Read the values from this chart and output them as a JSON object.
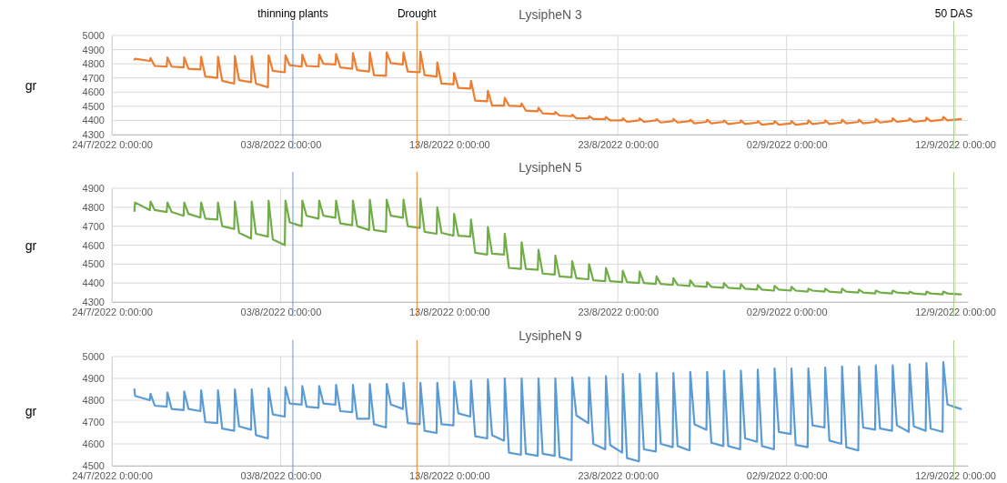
{
  "chart_data": [
    {
      "type": "line",
      "title": "LysipheN 3",
      "ylabel": "gr",
      "grid": true,
      "xlim": [
        "2022-07-24T00:00",
        "2022-09-12T18:00"
      ],
      "xticks": [
        {
          "value": "2022-07-24T00:00",
          "label": "24/7/2022 0:00:00"
        },
        {
          "value": "2022-08-03T00:00",
          "label": "03/8/2022 0:00:00"
        },
        {
          "value": "2022-08-13T00:00",
          "label": "13/8/2022 0:00:00"
        },
        {
          "value": "2022-08-23T00:00",
          "label": "23/8/2022 0:00:00"
        },
        {
          "value": "2022-09-02T00:00",
          "label": "02/9/2022 0:00:00"
        },
        {
          "value": "2022-09-12T00:00",
          "label": "12/9/2022 0:00:00"
        }
      ],
      "ylim": [
        4300,
        5000
      ],
      "yticks": [
        4300,
        4400,
        4500,
        4600,
        4700,
        4800,
        4900,
        5000
      ],
      "ref_lines": [
        {
          "axis": "x",
          "value": "2022-08-03T17:30",
          "label": "thinning plants",
          "color": "#5b9bd5"
        },
        {
          "axis": "x",
          "value": "2022-08-11T02:00",
          "label": "Drought",
          "color": "#ed7d31"
        },
        {
          "axis": "x",
          "value": "2022-09-11T22:00",
          "label": "50 DAS",
          "color": "#a9d18e"
        }
      ],
      "x": [
        "2022-07-25T08:00",
        "2022-07-25T09:00",
        "2022-07-26T06:00",
        "2022-07-26T07:00",
        "2022-07-26T13:00",
        "2022-07-27T06:00",
        "2022-07-27T07:00",
        "2022-07-27T13:00",
        "2022-07-28T06:00",
        "2022-07-28T07:00",
        "2022-07-28T13:00",
        "2022-07-29T06:00",
        "2022-07-29T07:00",
        "2022-07-29T13:00",
        "2022-07-30T06:00",
        "2022-07-30T07:00",
        "2022-07-30T13:00",
        "2022-07-31T06:00",
        "2022-07-31T07:00",
        "2022-07-31T13:00",
        "2022-08-01T06:00",
        "2022-08-01T07:00",
        "2022-08-01T13:00",
        "2022-08-02T06:00",
        "2022-08-02T07:00",
        "2022-08-02T13:00",
        "2022-08-03T06:00",
        "2022-08-03T07:00",
        "2022-08-03T13:00",
        "2022-08-04T06:00",
        "2022-08-04T07:00",
        "2022-08-04T13:00",
        "2022-08-05T06:00",
        "2022-08-05T07:00",
        "2022-08-05T13:00",
        "2022-08-06T06:00",
        "2022-08-06T07:00",
        "2022-08-06T13:00",
        "2022-08-07T06:00",
        "2022-08-07T07:00",
        "2022-08-07T13:00",
        "2022-08-08T06:00",
        "2022-08-08T07:00",
        "2022-08-08T13:00",
        "2022-08-09T06:00",
        "2022-08-09T07:00",
        "2022-08-09T13:00",
        "2022-08-10T06:00",
        "2022-08-10T07:00",
        "2022-08-10T13:00",
        "2022-08-11T06:00",
        "2022-08-11T07:00",
        "2022-08-11T13:00",
        "2022-08-12T06:00",
        "2022-08-12T07:00",
        "2022-08-12T13:00",
        "2022-08-13T06:00",
        "2022-08-13T07:00",
        "2022-08-13T13:00",
        "2022-08-14T06:00",
        "2022-08-14T07:00",
        "2022-08-14T13:00",
        "2022-08-15T06:00",
        "2022-08-15T07:00",
        "2022-08-15T13:00",
        "2022-08-16T06:00",
        "2022-08-16T07:00",
        "2022-08-16T13:00",
        "2022-08-17T06:00",
        "2022-08-17T07:00",
        "2022-08-17T13:00",
        "2022-08-18T06:00",
        "2022-08-18T07:00",
        "2022-08-18T13:00",
        "2022-08-19T06:00",
        "2022-08-19T07:00",
        "2022-08-19T13:00",
        "2022-08-20T06:00",
        "2022-08-20T07:00",
        "2022-08-20T13:00",
        "2022-08-21T06:00",
        "2022-08-21T07:00",
        "2022-08-21T13:00",
        "2022-08-22T06:00",
        "2022-08-22T07:00",
        "2022-08-22T13:00",
        "2022-08-23T06:00",
        "2022-08-23T07:00",
        "2022-08-23T13:00",
        "2022-08-24T06:00",
        "2022-08-24T07:00",
        "2022-08-24T13:00",
        "2022-08-25T06:00",
        "2022-08-25T07:00",
        "2022-08-25T13:00",
        "2022-08-26T06:00",
        "2022-08-26T07:00",
        "2022-08-26T13:00",
        "2022-08-27T06:00",
        "2022-08-27T07:00",
        "2022-08-27T13:00",
        "2022-08-28T06:00",
        "2022-08-28T07:00",
        "2022-08-28T13:00",
        "2022-08-29T06:00",
        "2022-08-29T07:00",
        "2022-08-29T13:00",
        "2022-08-30T06:00",
        "2022-08-30T07:00",
        "2022-08-30T13:00",
        "2022-08-31T06:00",
        "2022-08-31T07:00",
        "2022-08-31T13:00",
        "2022-09-01T06:00",
        "2022-09-01T07:00",
        "2022-09-01T13:00",
        "2022-09-02T06:00",
        "2022-09-02T07:00",
        "2022-09-02T13:00",
        "2022-09-03T06:00",
        "2022-09-03T07:00",
        "2022-09-03T13:00",
        "2022-09-04T06:00",
        "2022-09-04T07:00",
        "2022-09-04T13:00",
        "2022-09-05T06:00",
        "2022-09-05T07:00",
        "2022-09-05T13:00",
        "2022-09-06T06:00",
        "2022-09-06T07:00",
        "2022-09-06T13:00",
        "2022-09-07T06:00",
        "2022-09-07T07:00",
        "2022-09-07T13:00",
        "2022-09-08T06:00",
        "2022-09-08T07:00",
        "2022-09-08T13:00",
        "2022-09-09T06:00",
        "2022-09-09T07:00",
        "2022-09-09T13:00",
        "2022-09-10T06:00",
        "2022-09-10T07:00",
        "2022-09-10T13:00",
        "2022-09-11T06:00",
        "2022-09-11T07:00",
        "2022-09-11T13:00",
        "2022-09-12T08:00"
      ],
      "series": [
        {
          "color": "#ed7d31",
          "values": [
            4830,
            4835,
            4820,
            4840,
            4785,
            4780,
            4845,
            4780,
            4775,
            4845,
            4765,
            4760,
            4850,
            4710,
            4700,
            4850,
            4680,
            4660,
            4855,
            4685,
            4670,
            4855,
            4660,
            4635,
            4860,
            4750,
            4740,
            4860,
            4790,
            4780,
            4865,
            4785,
            4780,
            4865,
            4800,
            4795,
            4870,
            4775,
            4765,
            4875,
            4755,
            4745,
            4880,
            4720,
            4715,
            4880,
            4805,
            4795,
            4880,
            4745,
            4740,
            4885,
            4720,
            4710,
            4810,
            4660,
            4655,
            4735,
            4630,
            4625,
            4680,
            4540,
            4535,
            4610,
            4505,
            4505,
            4560,
            4505,
            4500,
            4520,
            4470,
            4465,
            4490,
            4450,
            4445,
            4460,
            4435,
            4430,
            4440,
            4415,
            4415,
            4430,
            4410,
            4410,
            4425,
            4400,
            4400,
            4415,
            4390,
            4400,
            4415,
            4390,
            4400,
            4410,
            4385,
            4395,
            4410,
            4385,
            4395,
            4405,
            4380,
            4390,
            4405,
            4380,
            4390,
            4400,
            4375,
            4385,
            4400,
            4375,
            4385,
            4395,
            4370,
            4380,
            4395,
            4370,
            4380,
            4395,
            4370,
            4380,
            4400,
            4375,
            4385,
            4400,
            4375,
            4385,
            4405,
            4380,
            4390,
            4405,
            4380,
            4390,
            4410,
            4385,
            4395,
            4415,
            4390,
            4400,
            4415,
            4390,
            4400,
            4420,
            4395,
            4405,
            4425,
            4400,
            4410
          ]
        }
      ]
    },
    {
      "type": "line",
      "title": "LysipheN 5",
      "ylabel": "gr",
      "grid": true,
      "xlim": [
        "2022-07-24T00:00",
        "2022-09-12T18:00"
      ],
      "xticks": [
        {
          "value": "2022-07-24T00:00",
          "label": "24/7/2022 0:00:00"
        },
        {
          "value": "2022-08-03T00:00",
          "label": "03/8/2022 0:00:00"
        },
        {
          "value": "2022-08-13T00:00",
          "label": "13/8/2022 0:00:00"
        },
        {
          "value": "2022-08-23T00:00",
          "label": "23/8/2022 0:00:00"
        },
        {
          "value": "2022-09-02T00:00",
          "label": "02/9/2022 0:00:00"
        },
        {
          "value": "2022-09-12T00:00",
          "label": "12/9/2022 0:00:00"
        }
      ],
      "ylim": [
        4300,
        4900
      ],
      "yticks": [
        4300,
        4400,
        4500,
        4600,
        4700,
        4800,
        4900
      ],
      "ref_lines": [
        {
          "axis": "x",
          "value": "2022-08-03T17:30",
          "color": "#5b9bd5"
        },
        {
          "axis": "x",
          "value": "2022-08-11T02:00",
          "color": "#ed7d31"
        },
        {
          "axis": "x",
          "value": "2022-09-11T22:00",
          "color": "#a9d18e"
        }
      ],
      "x": [
        "2022-07-25T08:00",
        "2022-07-25T09:00",
        "2022-07-26T06:00",
        "2022-07-26T07:00",
        "2022-07-26T13:00",
        "2022-07-27T06:00",
        "2022-07-27T07:00",
        "2022-07-27T13:00",
        "2022-07-28T06:00",
        "2022-07-28T07:00",
        "2022-07-28T13:00",
        "2022-07-29T06:00",
        "2022-07-29T07:00",
        "2022-07-29T13:00",
        "2022-07-30T06:00",
        "2022-07-30T07:00",
        "2022-07-30T13:00",
        "2022-07-31T06:00",
        "2022-07-31T07:00",
        "2022-07-31T13:00",
        "2022-08-01T06:00",
        "2022-08-01T07:00",
        "2022-08-01T13:00",
        "2022-08-02T06:00",
        "2022-08-02T07:00",
        "2022-08-02T13:00",
        "2022-08-03T06:00",
        "2022-08-03T07:00",
        "2022-08-03T13:00",
        "2022-08-04T06:00",
        "2022-08-04T07:00",
        "2022-08-04T13:00",
        "2022-08-05T06:00",
        "2022-08-05T07:00",
        "2022-08-05T13:00",
        "2022-08-06T06:00",
        "2022-08-06T07:00",
        "2022-08-06T13:00",
        "2022-08-07T06:00",
        "2022-08-07T07:00",
        "2022-08-07T13:00",
        "2022-08-08T06:00",
        "2022-08-08T07:00",
        "2022-08-08T13:00",
        "2022-08-09T06:00",
        "2022-08-09T07:00",
        "2022-08-09T13:00",
        "2022-08-10T06:00",
        "2022-08-10T07:00",
        "2022-08-10T13:00",
        "2022-08-11T06:00",
        "2022-08-11T07:00",
        "2022-08-11T13:00",
        "2022-08-12T06:00",
        "2022-08-12T07:00",
        "2022-08-12T13:00",
        "2022-08-13T06:00",
        "2022-08-13T07:00",
        "2022-08-13T13:00",
        "2022-08-14T06:00",
        "2022-08-14T07:00",
        "2022-08-14T13:00",
        "2022-08-15T06:00",
        "2022-08-15T07:00",
        "2022-08-15T13:00",
        "2022-08-16T06:00",
        "2022-08-16T07:00",
        "2022-08-16T13:00",
        "2022-08-17T06:00",
        "2022-08-17T07:00",
        "2022-08-17T13:00",
        "2022-08-18T06:00",
        "2022-08-18T07:00",
        "2022-08-18T13:00",
        "2022-08-19T06:00",
        "2022-08-19T07:00",
        "2022-08-19T13:00",
        "2022-08-20T06:00",
        "2022-08-20T07:00",
        "2022-08-20T13:00",
        "2022-08-21T06:00",
        "2022-08-21T07:00",
        "2022-08-21T13:00",
        "2022-08-22T06:00",
        "2022-08-22T07:00",
        "2022-08-22T13:00",
        "2022-08-23T06:00",
        "2022-08-23T07:00",
        "2022-08-23T13:00",
        "2022-08-24T06:00",
        "2022-08-24T07:00",
        "2022-08-24T13:00",
        "2022-08-25T06:00",
        "2022-08-25T07:00",
        "2022-08-25T13:00",
        "2022-08-26T06:00",
        "2022-08-26T07:00",
        "2022-08-26T13:00",
        "2022-08-27T06:00",
        "2022-08-27T07:00",
        "2022-08-27T13:00",
        "2022-08-28T06:00",
        "2022-08-28T07:00",
        "2022-08-28T13:00",
        "2022-08-29T06:00",
        "2022-08-29T07:00",
        "2022-08-29T13:00",
        "2022-08-30T06:00",
        "2022-08-30T07:00",
        "2022-08-30T13:00",
        "2022-08-31T06:00",
        "2022-08-31T07:00",
        "2022-08-31T13:00",
        "2022-09-01T06:00",
        "2022-09-01T07:00",
        "2022-09-01T13:00",
        "2022-09-02T06:00",
        "2022-09-02T07:00",
        "2022-09-02T13:00",
        "2022-09-03T06:00",
        "2022-09-03T07:00",
        "2022-09-03T13:00",
        "2022-09-04T06:00",
        "2022-09-04T07:00",
        "2022-09-04T13:00",
        "2022-09-05T06:00",
        "2022-09-05T07:00",
        "2022-09-05T13:00",
        "2022-09-06T06:00",
        "2022-09-06T07:00",
        "2022-09-06T13:00",
        "2022-09-07T06:00",
        "2022-09-07T07:00",
        "2022-09-07T13:00",
        "2022-09-08T06:00",
        "2022-09-08T07:00",
        "2022-09-08T13:00",
        "2022-09-09T06:00",
        "2022-09-09T07:00",
        "2022-09-09T13:00",
        "2022-09-10T06:00",
        "2022-09-10T07:00",
        "2022-09-10T13:00",
        "2022-09-11T06:00",
        "2022-09-11T07:00",
        "2022-09-11T13:00",
        "2022-09-12T08:00"
      ],
      "series": [
        {
          "color": "#70ad47",
          "values": [
            4780,
            4825,
            4785,
            4830,
            4785,
            4775,
            4825,
            4775,
            4755,
            4825,
            4765,
            4745,
            4825,
            4740,
            4735,
            4825,
            4700,
            4685,
            4830,
            4665,
            4635,
            4830,
            4660,
            4645,
            4835,
            4630,
            4600,
            4835,
            4720,
            4700,
            4835,
            4755,
            4740,
            4835,
            4755,
            4745,
            4835,
            4715,
            4705,
            4835,
            4700,
            4680,
            4840,
            4680,
            4670,
            4840,
            4755,
            4745,
            4840,
            4700,
            4690,
            4845,
            4670,
            4660,
            4800,
            4665,
            4650,
            4765,
            4650,
            4645,
            4735,
            4560,
            4550,
            4695,
            4555,
            4550,
            4660,
            4480,
            4475,
            4615,
            4475,
            4470,
            4575,
            4450,
            4445,
            4545,
            4435,
            4430,
            4515,
            4425,
            4420,
            4500,
            4415,
            4410,
            4480,
            4410,
            4405,
            4465,
            4405,
            4400,
            4460,
            4400,
            4395,
            4435,
            4395,
            4390,
            4425,
            4390,
            4385,
            4415,
            4385,
            4380,
            4405,
            4380,
            4375,
            4400,
            4375,
            4370,
            4395,
            4370,
            4365,
            4390,
            4365,
            4360,
            4385,
            4365,
            4360,
            4380,
            4360,
            4355,
            4370,
            4360,
            4355,
            4370,
            4355,
            4350,
            4370,
            4355,
            4350,
            4365,
            4350,
            4345,
            4360,
            4350,
            4345,
            4360,
            4350,
            4345,
            4355,
            4345,
            4340,
            4355,
            4345,
            4340,
            4355,
            4345,
            4340
          ]
        }
      ]
    },
    {
      "type": "line",
      "title": "LysipheN 9",
      "ylabel": "gr",
      "grid": true,
      "xlim": [
        "2022-07-24T00:00",
        "2022-09-12T18:00"
      ],
      "xticks": [
        {
          "value": "2022-07-24T00:00",
          "label": "24/7/2022 0:00:00"
        },
        {
          "value": "2022-08-03T00:00",
          "label": "03/8/2022 0:00:00"
        },
        {
          "value": "2022-08-13T00:00",
          "label": "13/8/2022 0:00:00"
        },
        {
          "value": "2022-08-23T00:00",
          "label": "23/8/2022 0:00:00"
        },
        {
          "value": "2022-09-02T00:00",
          "label": "02/9/2022 0:00:00"
        },
        {
          "value": "2022-09-12T00:00",
          "label": "12/9/2022 0:00:00"
        }
      ],
      "ylim": [
        4500,
        5000
      ],
      "yticks": [
        4500,
        4600,
        4700,
        4800,
        4900,
        5000
      ],
      "ref_lines": [
        {
          "axis": "x",
          "value": "2022-08-03T17:30",
          "color": "#5b9bd5"
        },
        {
          "axis": "x",
          "value": "2022-08-11T02:00",
          "color": "#ed7d31"
        },
        {
          "axis": "x",
          "value": "2022-09-11T22:00",
          "color": "#a9d18e"
        }
      ],
      "x": [
        "2022-07-25T08:00",
        "2022-07-25T09:00",
        "2022-07-26T06:00",
        "2022-07-26T07:00",
        "2022-07-26T13:00",
        "2022-07-27T06:00",
        "2022-07-27T07:00",
        "2022-07-27T13:00",
        "2022-07-28T06:00",
        "2022-07-28T07:00",
        "2022-07-28T13:00",
        "2022-07-29T06:00",
        "2022-07-29T07:00",
        "2022-07-29T13:00",
        "2022-07-30T06:00",
        "2022-07-30T07:00",
        "2022-07-30T13:00",
        "2022-07-31T06:00",
        "2022-07-31T07:00",
        "2022-07-31T13:00",
        "2022-08-01T06:00",
        "2022-08-01T07:00",
        "2022-08-01T13:00",
        "2022-08-02T06:00",
        "2022-08-02T07:00",
        "2022-08-02T13:00",
        "2022-08-03T06:00",
        "2022-08-03T07:00",
        "2022-08-03T13:00",
        "2022-08-04T06:00",
        "2022-08-04T07:00",
        "2022-08-04T13:00",
        "2022-08-05T06:00",
        "2022-08-05T07:00",
        "2022-08-05T13:00",
        "2022-08-06T06:00",
        "2022-08-06T07:00",
        "2022-08-06T13:00",
        "2022-08-07T06:00",
        "2022-08-07T07:00",
        "2022-08-07T13:00",
        "2022-08-08T06:00",
        "2022-08-08T07:00",
        "2022-08-08T13:00",
        "2022-08-09T06:00",
        "2022-08-09T07:00",
        "2022-08-09T13:00",
        "2022-08-10T06:00",
        "2022-08-10T07:00",
        "2022-08-10T13:00",
        "2022-08-11T06:00",
        "2022-08-11T07:00",
        "2022-08-11T13:00",
        "2022-08-12T06:00",
        "2022-08-12T07:00",
        "2022-08-12T13:00",
        "2022-08-13T06:00",
        "2022-08-13T07:00",
        "2022-08-13T13:00",
        "2022-08-14T06:00",
        "2022-08-14T07:00",
        "2022-08-14T13:00",
        "2022-08-15T06:00",
        "2022-08-15T07:00",
        "2022-08-15T13:00",
        "2022-08-16T06:00",
        "2022-08-16T07:00",
        "2022-08-16T13:00",
        "2022-08-17T06:00",
        "2022-08-17T07:00",
        "2022-08-17T13:00",
        "2022-08-18T06:00",
        "2022-08-18T07:00",
        "2022-08-18T13:00",
        "2022-08-19T06:00",
        "2022-08-19T07:00",
        "2022-08-19T13:00",
        "2022-08-20T06:00",
        "2022-08-20T07:00",
        "2022-08-20T13:00",
        "2022-08-21T06:00",
        "2022-08-21T07:00",
        "2022-08-21T13:00",
        "2022-08-22T06:00",
        "2022-08-22T07:00",
        "2022-08-22T13:00",
        "2022-08-23T06:00",
        "2022-08-23T07:00",
        "2022-08-23T13:00",
        "2022-08-24T06:00",
        "2022-08-24T07:00",
        "2022-08-24T13:00",
        "2022-08-25T06:00",
        "2022-08-25T07:00",
        "2022-08-25T13:00",
        "2022-08-26T06:00",
        "2022-08-26T07:00",
        "2022-08-26T13:00",
        "2022-08-27T06:00",
        "2022-08-27T07:00",
        "2022-08-27T13:00",
        "2022-08-28T06:00",
        "2022-08-28T07:00",
        "2022-08-28T13:00",
        "2022-08-29T06:00",
        "2022-08-29T07:00",
        "2022-08-29T13:00",
        "2022-08-30T06:00",
        "2022-08-30T07:00",
        "2022-08-30T13:00",
        "2022-08-31T06:00",
        "2022-08-31T07:00",
        "2022-08-31T13:00",
        "2022-09-01T06:00",
        "2022-09-01T07:00",
        "2022-09-01T13:00",
        "2022-09-02T06:00",
        "2022-09-02T07:00",
        "2022-09-02T13:00",
        "2022-09-03T06:00",
        "2022-09-03T07:00",
        "2022-09-03T13:00",
        "2022-09-04T06:00",
        "2022-09-04T07:00",
        "2022-09-04T13:00",
        "2022-09-05T06:00",
        "2022-09-05T07:00",
        "2022-09-05T13:00",
        "2022-09-06T06:00",
        "2022-09-06T07:00",
        "2022-09-06T13:00",
        "2022-09-07T06:00",
        "2022-09-07T07:00",
        "2022-09-07T13:00",
        "2022-09-08T06:00",
        "2022-09-08T07:00",
        "2022-09-08T13:00",
        "2022-09-09T06:00",
        "2022-09-09T07:00",
        "2022-09-09T13:00",
        "2022-09-10T06:00",
        "2022-09-10T07:00",
        "2022-09-10T13:00",
        "2022-09-11T06:00",
        "2022-09-11T07:00",
        "2022-09-11T13:00",
        "2022-09-12T08:00"
      ],
      "series": [
        {
          "color": "#5b9bd5",
          "values": [
            4850,
            4820,
            4800,
            4830,
            4775,
            4770,
            4835,
            4760,
            4755,
            4840,
            4760,
            4750,
            4845,
            4700,
            4695,
            4845,
            4670,
            4660,
            4850,
            4680,
            4665,
            4850,
            4640,
            4625,
            4855,
            4735,
            4725,
            4860,
            4785,
            4780,
            4865,
            4770,
            4765,
            4865,
            4785,
            4780,
            4870,
            4750,
            4745,
            4870,
            4715,
            4715,
            4875,
            4690,
            4675,
            4875,
            4780,
            4760,
            4880,
            4695,
            4690,
            4880,
            4660,
            4650,
            4880,
            4690,
            4685,
            4885,
            4740,
            4725,
            4890,
            4635,
            4625,
            4895,
            4640,
            4615,
            4900,
            4560,
            4550,
            4900,
            4555,
            4545,
            4900,
            4555,
            4545,
            4900,
            4540,
            4525,
            4905,
            4730,
            4695,
            4905,
            4600,
            4575,
            4910,
            4595,
            4560,
            4920,
            4535,
            4520,
            4920,
            4575,
            4565,
            4925,
            4600,
            4585,
            4925,
            4590,
            4570,
            4930,
            4690,
            4665,
            4930,
            4605,
            4590,
            4935,
            4590,
            4575,
            4935,
            4625,
            4610,
            4940,
            4590,
            4575,
            4945,
            4655,
            4645,
            4945,
            4595,
            4585,
            4945,
            4685,
            4675,
            4950,
            4615,
            4600,
            4955,
            4585,
            4570,
            4955,
            4675,
            4665,
            4960,
            4670,
            4660,
            4960,
            4685,
            4655,
            4965,
            4680,
            4660,
            4970,
            4670,
            4655,
            4975,
            4780,
            4760
          ]
        }
      ]
    }
  ]
}
